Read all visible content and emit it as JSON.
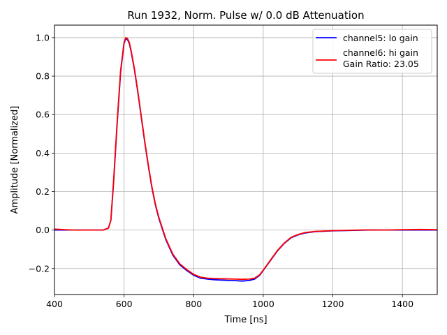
{
  "chart_data": {
    "type": "line",
    "title": "Run 1932, Norm. Pulse w/ 0.0 dB Attenuation",
    "xlabel": "Time [ns]",
    "ylabel": "Amplitude [Normalized]",
    "xlim": [
      400,
      1500
    ],
    "ylim": [
      -0.335,
      1.065
    ],
    "xticks": [
      400,
      600,
      800,
      1000,
      1200,
      1400
    ],
    "yticks": [
      -0.2,
      0.0,
      0.2,
      0.4,
      0.6,
      0.8,
      1.0
    ],
    "xtick_labels": [
      "400",
      "600",
      "800",
      "1000",
      "1200",
      "1400"
    ],
    "ytick_labels": [
      "−0.2",
      "0.0",
      "0.2",
      "0.4",
      "0.6",
      "0.8",
      "1.0"
    ],
    "grid": true,
    "legend_position": "top-right",
    "legend_extra": "Gain Ratio: 23.05",
    "series": [
      {
        "name": "channel5: lo gain",
        "color": "#0000ff",
        "x": [
          400,
          450,
          500,
          540,
          555,
          562,
          570,
          580,
          590,
          600,
          605,
          610,
          615,
          620,
          630,
          640,
          650,
          660,
          670,
          680,
          690,
          700,
          720,
          740,
          760,
          780,
          800,
          820,
          840,
          860,
          880,
          900,
          920,
          940,
          960,
          975,
          990,
          1000,
          1010,
          1020,
          1040,
          1060,
          1080,
          1100,
          1120,
          1150,
          1200,
          1250,
          1300,
          1350,
          1400,
          1450,
          1500
        ],
        "y": [
          0.0,
          0.0,
          0.0,
          0.0,
          0.01,
          0.05,
          0.25,
          0.55,
          0.82,
          0.97,
          0.995,
          0.99,
          0.97,
          0.93,
          0.83,
          0.71,
          0.58,
          0.45,
          0.33,
          0.22,
          0.13,
          0.06,
          -0.05,
          -0.13,
          -0.18,
          -0.21,
          -0.235,
          -0.25,
          -0.255,
          -0.258,
          -0.26,
          -0.262,
          -0.263,
          -0.265,
          -0.262,
          -0.255,
          -0.235,
          -0.21,
          -0.185,
          -0.16,
          -0.11,
          -0.07,
          -0.04,
          -0.025,
          -0.015,
          -0.008,
          -0.004,
          -0.002,
          0.0,
          0.0,
          0.0,
          0.0,
          0.0
        ]
      },
      {
        "name": "channel6: hi gain",
        "color": "#ff0000",
        "x": [
          400,
          450,
          500,
          540,
          555,
          562,
          570,
          580,
          590,
          600,
          605,
          610,
          615,
          620,
          630,
          640,
          650,
          660,
          670,
          680,
          690,
          700,
          720,
          740,
          760,
          780,
          800,
          820,
          840,
          860,
          880,
          900,
          920,
          940,
          960,
          975,
          990,
          1000,
          1010,
          1020,
          1040,
          1060,
          1080,
          1100,
          1120,
          1150,
          1200,
          1250,
          1300,
          1350,
          1400,
          1450,
          1500
        ],
        "y": [
          0.005,
          0.0,
          0.0,
          0.0,
          0.01,
          0.05,
          0.26,
          0.56,
          0.83,
          0.975,
          1.0,
          0.995,
          0.975,
          0.935,
          0.835,
          0.715,
          0.585,
          0.455,
          0.335,
          0.225,
          0.135,
          0.065,
          -0.045,
          -0.125,
          -0.175,
          -0.205,
          -0.23,
          -0.245,
          -0.25,
          -0.252,
          -0.253,
          -0.254,
          -0.255,
          -0.256,
          -0.255,
          -0.25,
          -0.232,
          -0.208,
          -0.183,
          -0.158,
          -0.108,
          -0.068,
          -0.038,
          -0.023,
          -0.013,
          -0.007,
          -0.003,
          -0.001,
          0.001,
          0.0,
          0.002,
          0.003,
          0.002
        ]
      }
    ]
  }
}
